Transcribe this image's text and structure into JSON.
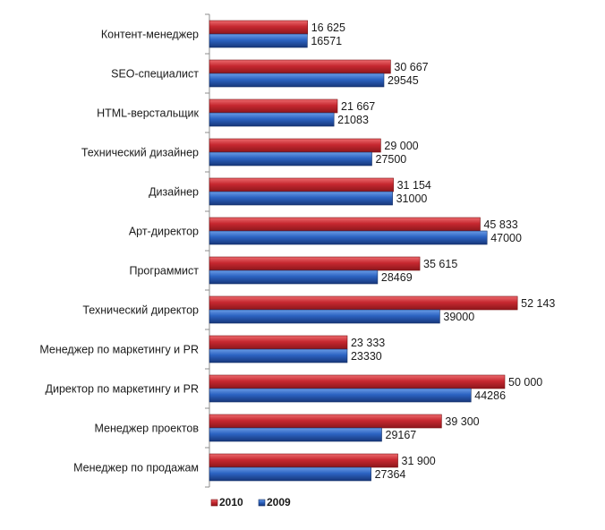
{
  "chart_data": {
    "type": "bar",
    "orientation": "horizontal",
    "title": "",
    "xlabel": "",
    "ylabel": "",
    "categories": [
      "Контент-менеджер",
      "SEO-специалист",
      "HTML-верстальщик",
      "Технический дизайнер",
      "Дизайнер",
      "Арт-директор",
      "Программист",
      "Технический директор",
      "Менеджер по маркетингу и PR",
      "Директор по маркетингу и PR",
      "Менеджер проектов",
      "Менеджер по продажам"
    ],
    "series": [
      {
        "name": "2010",
        "color": "#c0272d",
        "values": [
          16625,
          30667,
          21667,
          29000,
          31154,
          45833,
          35615,
          52143,
          23333,
          50000,
          39300,
          31900
        ],
        "labels": [
          "16 625",
          "30 667",
          "21 667",
          "29 000",
          "31 154",
          "45 833",
          "35 615",
          "52 143",
          "23 333",
          "50 000",
          "39 300",
          "31 900"
        ]
      },
      {
        "name": "2009",
        "color": "#2a5fb8",
        "values": [
          16571,
          29545,
          21083,
          27500,
          31000,
          47000,
          28469,
          39000,
          23330,
          44286,
          29167,
          27364
        ],
        "labels": [
          "16571",
          "29545",
          "21083",
          "27500",
          "31000",
          "47000",
          "28469",
          "39000",
          "23330",
          "44286",
          "29167",
          "27364"
        ]
      }
    ],
    "xlim": [
      0,
      60000
    ],
    "grid": false,
    "legend_position": "bottom"
  }
}
